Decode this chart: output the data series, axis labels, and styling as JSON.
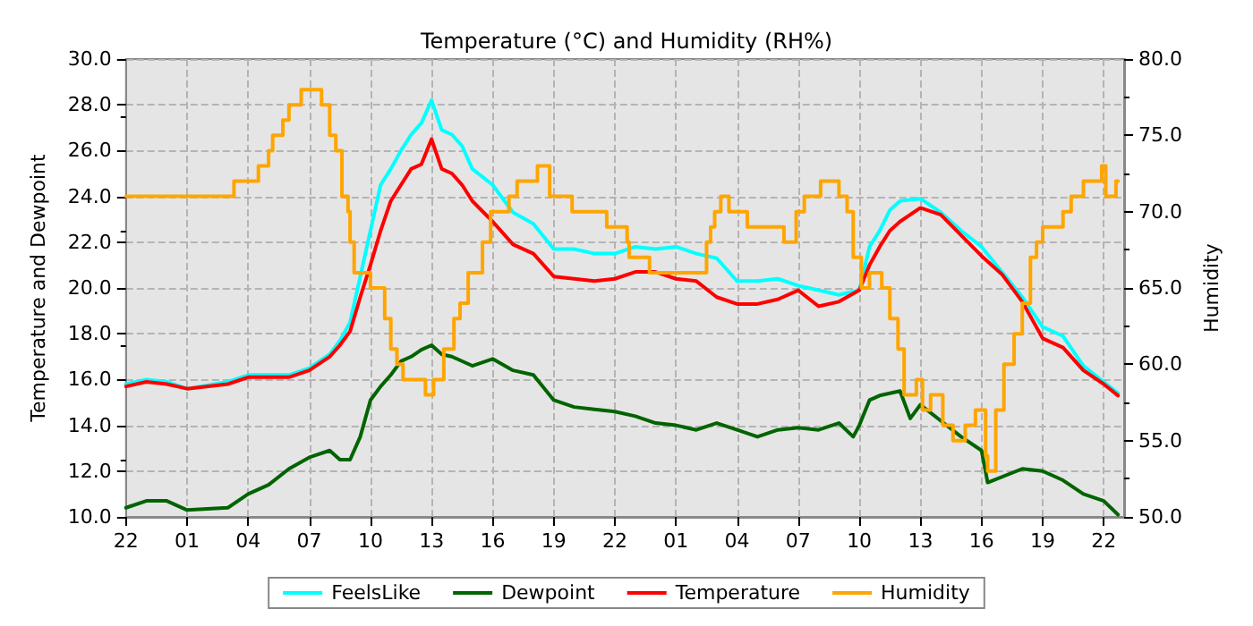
{
  "chart_data": {
    "type": "line",
    "title": "Temperature (°C) and Humidity (RH%)",
    "ylabel": "Temperature and Dewpoint",
    "y2label": "Humidity",
    "xlim": [
      "--01-01T22:00",
      "--01-03T23:00"
    ],
    "xticks": [
      {
        "value": "--01-01T22:00",
        "label": "22"
      },
      {
        "value": "--01-02T01:00",
        "label": "01"
      },
      {
        "value": "--01-02T04:00",
        "label": "04"
      },
      {
        "value": "--01-02T07:00",
        "label": "07"
      },
      {
        "value": "--01-02T10:00",
        "label": "10"
      },
      {
        "value": "--01-02T13:00",
        "label": "13"
      },
      {
        "value": "--01-02T16:00",
        "label": "16"
      },
      {
        "value": "--01-02T19:00",
        "label": "19"
      },
      {
        "value": "--01-02T22:00",
        "label": "22"
      },
      {
        "value": "--01-03T01:00",
        "label": "01"
      },
      {
        "value": "--01-03T04:00",
        "label": "04"
      },
      {
        "value": "--01-03T07:00",
        "label": "07"
      },
      {
        "value": "--01-03T10:00",
        "label": "10"
      },
      {
        "value": "--01-03T13:00",
        "label": "13"
      },
      {
        "value": "--01-03T16:00",
        "label": "16"
      },
      {
        "value": "--01-03T19:00",
        "label": "19"
      },
      {
        "value": "--01-03T22:00",
        "label": "22"
      }
    ],
    "ylim": [
      10,
      30
    ],
    "yticks": [
      {
        "value": 10,
        "label": "10.0"
      },
      {
        "value": 12,
        "label": "12.0"
      },
      {
        "value": 14,
        "label": "14.0"
      },
      {
        "value": 16,
        "label": "16.0"
      },
      {
        "value": 18,
        "label": "18.0"
      },
      {
        "value": 20,
        "label": "20.0"
      },
      {
        "value": 22,
        "label": "22.0"
      },
      {
        "value": 24,
        "label": "24.0"
      },
      {
        "value": 26,
        "label": "26.0"
      },
      {
        "value": 28,
        "label": "28.0"
      },
      {
        "value": 30,
        "label": "30.0"
      }
    ],
    "y2lim": [
      50,
      80
    ],
    "y2ticks": [
      {
        "value": 50,
        "label": "50.0"
      },
      {
        "value": 55,
        "label": "55.0"
      },
      {
        "value": 60,
        "label": "60.0"
      },
      {
        "value": 65,
        "label": "65.0"
      },
      {
        "value": 70,
        "label": "70.0"
      },
      {
        "value": 75,
        "label": "75.0"
      },
      {
        "value": 80,
        "label": "80.0"
      }
    ],
    "grid": true,
    "legend": "bottom",
    "marker": "none",
    "line_style": "solid",
    "x": [
      "--01-01T22:00",
      "--01-01T23:00",
      "--01-02T00:00",
      "--01-02T01:00",
      "--01-02T03:00",
      "--01-02T04:00",
      "--01-02T06:00",
      "--01-02T07:00",
      "--01-02T08:00",
      "--01-02T08:30",
      "--01-02T09:00",
      "--01-02T09:30",
      "--01-02T10:00",
      "--01-02T10:30",
      "--01-02T11:00",
      "--01-02T11:30",
      "--01-02T12:00",
      "--01-02T12:30",
      "--01-02T13:00",
      "--01-02T13:30",
      "--01-02T14:00",
      "--01-02T14:30",
      "--01-02T15:00",
      "--01-02T16:00",
      "--01-02T17:00",
      "--01-02T18:00",
      "--01-02T19:00",
      "--01-02T20:00",
      "--01-02T21:00",
      "--01-02T22:00",
      "--01-02T23:00",
      "--01-03T00:00",
      "--01-03T01:00",
      "--01-03T02:00",
      "--01-03T03:00",
      "--01-03T04:00",
      "--01-03T05:00",
      "--01-03T06:00",
      "--01-03T07:00",
      "--01-03T08:00",
      "--01-03T09:00",
      "--01-03T10:00",
      "--01-03T10:30",
      "--01-03T11:00",
      "--01-03T11:30",
      "--01-03T12:00",
      "--01-03T13:00",
      "--01-03T14:00",
      "--01-03T15:00",
      "--01-03T16:00",
      "--01-03T17:00",
      "--01-03T18:00",
      "--01-03T19:00",
      "--01-03T20:00",
      "--01-03T21:00",
      "--01-03T22:00",
      "--01-03T22:42"
    ],
    "series": [
      {
        "name": "FeelsLike",
        "color": "#00ffff",
        "values": [
          15.8,
          16.0,
          15.9,
          15.6,
          15.9,
          16.2,
          16.2,
          16.5,
          17.1,
          17.7,
          18.5,
          20.5,
          22.5,
          24.5,
          25.2,
          26.0,
          26.7,
          27.2,
          28.2,
          26.9,
          26.7,
          26.2,
          25.2,
          24.5,
          23.3,
          22.8,
          21.7,
          21.7,
          21.5,
          21.5,
          21.8,
          21.7,
          21.8,
          21.5,
          21.3,
          20.3,
          20.3,
          20.4,
          20.1,
          19.9,
          19.7,
          19.9,
          21.8,
          22.5,
          23.4,
          23.8,
          23.9,
          23.3,
          22.5,
          21.8,
          20.7,
          19.6,
          18.3,
          17.9,
          16.6,
          15.9,
          15.4
        ]
      },
      {
        "name": "Dewpoint",
        "color": "#006400",
        "x": [
          "--01-01T22:00",
          "--01-01T23:00",
          "--01-02T00:00",
          "--01-02T01:00",
          "--01-02T03:00",
          "--01-02T04:00",
          "--01-02T05:00",
          "--01-02T06:00",
          "--01-02T07:00",
          "--01-02T08:00",
          "--01-02T08:30",
          "--01-02T09:00",
          "--01-02T09:30",
          "--01-02T10:00",
          "--01-02T10:30",
          "--01-02T11:00",
          "--01-02T11:30",
          "--01-02T12:00",
          "--01-02T12:30",
          "--01-02T13:00",
          "--01-02T13:30",
          "--01-02T14:00",
          "--01-02T15:00",
          "--01-02T16:00",
          "--01-02T17:00",
          "--01-02T18:00",
          "--01-02T19:00",
          "--01-02T20:00",
          "--01-02T21:00",
          "--01-02T22:00",
          "--01-02T23:00",
          "--01-03T00:00",
          "--01-03T01:00",
          "--01-03T02:00",
          "--01-03T03:00",
          "--01-03T04:00",
          "--01-03T05:00",
          "--01-03T06:00",
          "--01-03T07:00",
          "--01-03T08:00",
          "--01-03T09:00",
          "--01-03T09:42",
          "--01-03T10:00",
          "--01-03T10:30",
          "--01-03T11:00",
          "--01-03T12:00",
          "--01-03T12:30",
          "--01-03T13:00",
          "--01-03T14:00",
          "--01-03T15:00",
          "--01-03T16:00",
          "--01-03T16:18",
          "--01-03T18:00",
          "--01-03T19:00",
          "--01-03T20:00",
          "--01-03T21:00",
          "--01-03T22:00",
          "--01-03T22:42"
        ],
        "values": [
          10.4,
          10.7,
          10.7,
          10.3,
          10.4,
          11.0,
          11.4,
          12.1,
          12.6,
          12.9,
          12.5,
          12.5,
          13.5,
          15.1,
          15.7,
          16.2,
          16.8,
          17.0,
          17.3,
          17.5,
          17.1,
          17.0,
          16.6,
          16.9,
          16.4,
          16.2,
          15.1,
          14.8,
          14.7,
          14.6,
          14.4,
          14.1,
          14.0,
          13.8,
          14.1,
          13.8,
          13.5,
          13.8,
          13.9,
          13.8,
          14.1,
          13.5,
          14.0,
          15.1,
          15.3,
          15.5,
          14.3,
          14.9,
          14.2,
          13.5,
          12.9,
          11.5,
          12.1,
          12.0,
          11.6,
          11.0,
          10.7,
          10.1
        ]
      },
      {
        "name": "Temperature",
        "color": "#ff0000",
        "values": [
          15.7,
          15.9,
          15.8,
          15.6,
          15.8,
          16.1,
          16.1,
          16.4,
          17.0,
          17.5,
          18.1,
          19.6,
          21.0,
          22.5,
          23.8,
          24.5,
          25.2,
          25.4,
          26.5,
          25.2,
          25.0,
          24.5,
          23.8,
          22.9,
          21.9,
          21.5,
          20.5,
          20.4,
          20.3,
          20.4,
          20.7,
          20.7,
          20.4,
          20.3,
          19.6,
          19.3,
          19.3,
          19.5,
          19.9,
          19.2,
          19.4,
          19.9,
          21.0,
          21.8,
          22.5,
          22.9,
          23.5,
          23.2,
          22.3,
          21.4,
          20.6,
          19.4,
          17.8,
          17.4,
          16.4,
          15.8,
          15.3
        ]
      },
      {
        "name": "Humidity",
        "color": "#ffa500",
        "type": "step",
        "axis": "y2",
        "x": [
          "--01-01T22:00",
          "--01-02T03:18",
          "--01-02T04:30",
          "--01-02T05:00",
          "--01-02T05:12",
          "--01-02T05:42",
          "--01-02T06:00",
          "--01-02T06:36",
          "--01-02T07:36",
          "--01-02T08:00",
          "--01-02T08:18",
          "--01-02T08:36",
          "--01-02T08:54",
          "--01-02T09:00",
          "--01-02T09:12",
          "--01-02T10:00",
          "--01-02T10:42",
          "--01-02T11:00",
          "--01-02T11:18",
          "--01-02T11:36",
          "--01-02T12:42",
          "--01-02T13:06",
          "--01-02T13:36",
          "--01-02T14:06",
          "--01-02T14:24",
          "--01-02T14:48",
          "--01-02T15:30",
          "--01-02T15:54",
          "--01-02T16:48",
          "--01-02T17:12",
          "--01-02T18:12",
          "--01-02T18:48",
          "--01-02T19:54",
          "--01-02T21:36",
          "--01-02T22:36",
          "--01-02T22:42",
          "--01-02T23:42",
          "--01-03T02:30",
          "--01-03T02:42",
          "--01-03T02:54",
          "--01-03T03:12",
          "--01-03T03:36",
          "--01-03T04:30",
          "--01-03T06:18",
          "--01-03T06:54",
          "--01-03T07:18",
          "--01-03T08:06",
          "--01-03T09:00",
          "--01-03T09:24",
          "--01-03T09:42",
          "--01-03T10:06",
          "--01-03T10:30",
          "--01-03T11:06",
          "--01-03T11:30",
          "--01-03T11:54",
          "--01-03T12:12",
          "--01-03T12:48",
          "--01-03T13:06",
          "--01-03T13:30",
          "--01-03T14:06",
          "--01-03T14:36",
          "--01-03T15:12",
          "--01-03T15:42",
          "--01-03T16:12",
          "--01-03T16:18",
          "--01-03T16:42",
          "--01-03T17:06",
          "--01-03T17:36",
          "--01-03T18:00",
          "--01-03T18:24",
          "--01-03T18:42",
          "--01-03T19:00",
          "--01-03T20:00",
          "--01-03T20:24",
          "--01-03T21:00",
          "--01-03T21:54",
          "--01-03T22:06",
          "--01-03T22:36",
          "--01-03T22:42"
        ],
        "values": [
          71,
          72,
          73,
          74,
          75,
          76,
          77,
          78,
          77,
          75,
          74,
          71,
          70,
          68,
          66,
          65,
          63,
          61,
          60,
          59,
          58,
          59,
          61,
          63,
          64,
          66,
          68,
          70,
          71,
          72,
          73,
          71,
          70,
          69,
          68,
          67,
          66,
          68,
          69,
          70,
          71,
          70,
          69,
          68,
          70,
          71,
          72,
          71,
          70,
          67,
          65,
          66,
          65,
          63,
          61,
          58,
          59,
          57,
          58,
          56,
          55,
          56,
          57,
          54,
          53,
          57,
          60,
          62,
          64,
          67,
          68,
          69,
          70,
          71,
          72,
          73,
          71,
          72,
          72
        ]
      }
    ]
  }
}
